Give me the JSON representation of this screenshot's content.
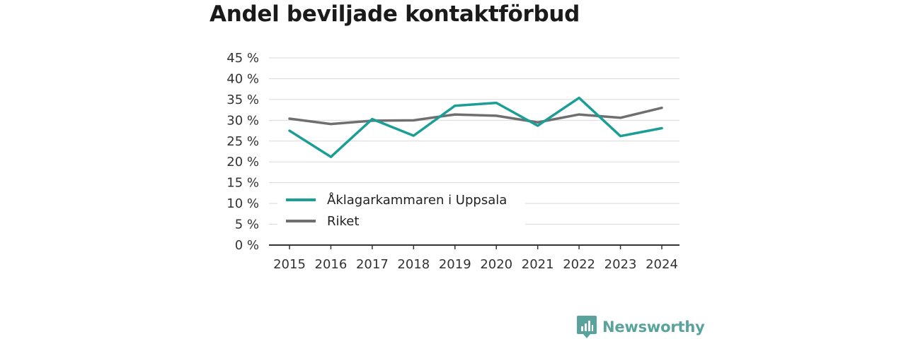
{
  "chart_data": {
    "type": "line",
    "title": "Andel beviljade kontaktförbud",
    "xlabel": "",
    "ylabel": "",
    "categories": [
      "2015",
      "2016",
      "2017",
      "2018",
      "2019",
      "2020",
      "2021",
      "2022",
      "2023",
      "2024"
    ],
    "series": [
      {
        "name": "Åklagarkammaren i Uppsala",
        "color": "#1a9e96",
        "values": [
          27.5,
          21.2,
          30.3,
          26.3,
          33.5,
          34.2,
          28.7,
          35.4,
          26.2,
          28.1
        ]
      },
      {
        "name": "Riket",
        "color": "#6f6f72",
        "values": [
          30.4,
          29.1,
          29.9,
          30.0,
          31.4,
          31.1,
          29.5,
          31.4,
          30.6,
          33.0
        ]
      }
    ],
    "ylim": [
      0,
      45
    ],
    "yticks": [
      0,
      5,
      10,
      15,
      20,
      25,
      30,
      35,
      40,
      45
    ],
    "ytick_labels": [
      "0 %",
      "5 %",
      "10 %",
      "15 %",
      "20 %",
      "25 %",
      "30 %",
      "35 %",
      "40 %",
      "45 %"
    ],
    "grid": true,
    "legend_position": "lower-left"
  },
  "brand": {
    "name": "Newsworthy",
    "color": "#5aa39c"
  }
}
